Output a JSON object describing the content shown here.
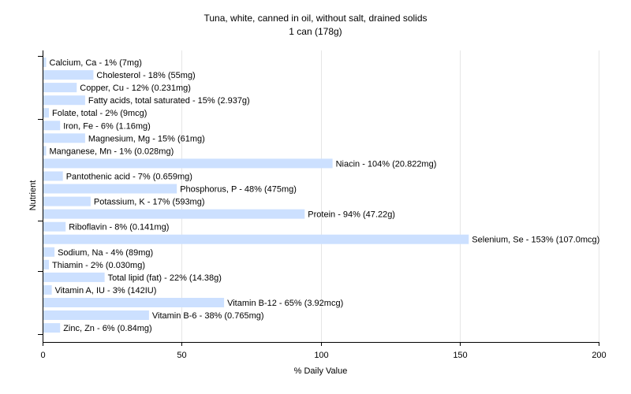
{
  "chart_data": {
    "type": "bar",
    "orientation": "horizontal",
    "title": "Tuna, white, canned in oil, without salt, drained solids",
    "subtitle": "1 can (178g)",
    "xlabel": "% Daily Value",
    "ylabel": "Nutrient",
    "xlim": [
      0,
      200
    ],
    "xticks": [
      "0",
      "50",
      "100",
      "150",
      "200"
    ],
    "grid": "vertical",
    "bar_color": "#cce0ff",
    "categories": [
      "Calcium, Ca",
      "Cholesterol",
      "Copper, Cu",
      "Fatty acids, total saturated",
      "Folate, total",
      "Iron, Fe",
      "Magnesium, Mg",
      "Manganese, Mn",
      "Niacin",
      "Pantothenic acid",
      "Phosphorus, P",
      "Potassium, K",
      "Protein",
      "Riboflavin",
      "Selenium, Se",
      "Sodium, Na",
      "Thiamin",
      "Total lipid (fat)",
      "Vitamin A, IU",
      "Vitamin B-12",
      "Vitamin B-6",
      "Zinc, Zn"
    ],
    "values": [
      1,
      18,
      12,
      15,
      2,
      6,
      15,
      1,
      104,
      7,
      48,
      17,
      94,
      8,
      153,
      4,
      2,
      22,
      3,
      65,
      38,
      6
    ],
    "labels": [
      "Calcium, Ca - 1% (7mg)",
      "Cholesterol - 18% (55mg)",
      "Copper, Cu - 12% (0.231mg)",
      "Fatty acids, total saturated - 15% (2.937g)",
      "Folate, total - 2% (9mcg)",
      "Iron, Fe - 6% (1.16mg)",
      "Magnesium, Mg - 15% (61mg)",
      "Manganese, Mn - 1% (0.028mg)",
      "Niacin - 104% (20.822mg)",
      "Pantothenic acid - 7% (0.659mg)",
      "Phosphorus, P - 48% (475mg)",
      "Potassium, K - 17% (593mg)",
      "Protein - 94% (47.22g)",
      "Riboflavin - 8% (0.141mg)",
      "Selenium, Se - 153% (107.0mcg)",
      "Sodium, Na - 4% (89mg)",
      "Thiamin - 2% (0.030mg)",
      "Total lipid (fat) - 22% (14.38g)",
      "Vitamin A, IU - 3% (142IU)",
      "Vitamin B-12 - 65% (3.92mcg)",
      "Vitamin B-6 - 38% (0.765mg)",
      "Zinc, Zn - 6% (0.84mg)"
    ]
  }
}
